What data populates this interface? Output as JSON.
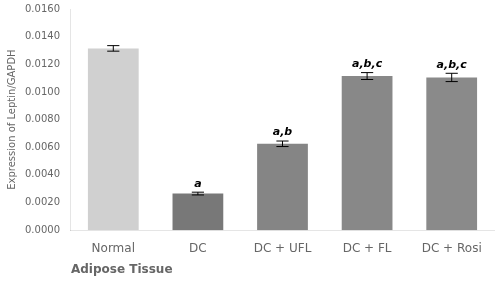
{
  "chart_data": {
    "type": "bar",
    "categories": [
      "Normal",
      "DC",
      "DC + UFL",
      "DC + FL",
      "DC + Rosi"
    ],
    "values": [
      0.01315,
      0.00265,
      0.00625,
      0.01115,
      0.01105
    ],
    "errors": [
      0.0002,
      0.0001,
      0.0002,
      0.00025,
      0.0003
    ],
    "colors": [
      "#d0d0d0",
      "#787878",
      "#858585",
      "#888888",
      "#8a8a8a"
    ],
    "annotations": [
      null,
      "a",
      "a,b",
      "a,b,c",
      "a,b,c"
    ],
    "ylabel": "Expression of Leptin/GAPDH",
    "xlabel": "Adipose Tissue",
    "ylim": [
      0,
      0.016
    ],
    "yticks": [
      {
        "value": 0.0,
        "label": "0.0000"
      },
      {
        "value": 0.002,
        "label": "0.0020"
      },
      {
        "value": 0.004,
        "label": "0.0040"
      },
      {
        "value": 0.006,
        "label": "0.0060"
      },
      {
        "value": 0.008,
        "label": "0.0080"
      },
      {
        "value": 0.01,
        "label": "0.0100"
      },
      {
        "value": 0.012,
        "label": "0.0120"
      },
      {
        "value": 0.014,
        "label": "0.0140"
      },
      {
        "value": 0.016,
        "label": "0.0160"
      }
    ],
    "grid": false
  }
}
